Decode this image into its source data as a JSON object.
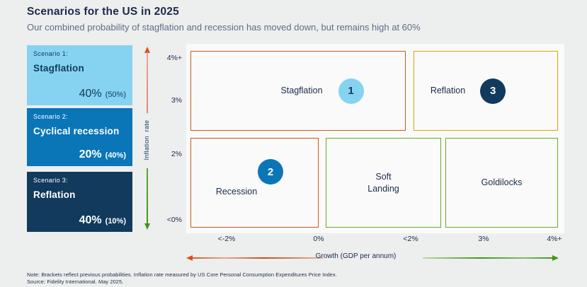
{
  "header": {
    "title": "Scenarios for the US in 2025",
    "subtitle": "Our combined probability of stagflation and recession has moved down, but remains high at 60%"
  },
  "scenarios": [
    {
      "label": "Scenario 1:",
      "name": "Stagflation",
      "probability": "40%",
      "previous": "(50%)"
    },
    {
      "label": "Scenario 2:",
      "name": "Cyclical recession",
      "probability": "20%",
      "previous": "(40%)"
    },
    {
      "label": "Scenario 3:",
      "name": "Reflation",
      "probability": "40%",
      "previous": "(10%)"
    }
  ],
  "chart": {
    "y_axis": {
      "label": "Inflation rate",
      "ticks": [
        "4%+",
        "3%",
        "2%",
        "<0%"
      ]
    },
    "x_axis": {
      "label": "Growth (GDP per annum)",
      "ticks": [
        "<-2%",
        "0%",
        "<2%",
        "3%",
        "4%+"
      ]
    },
    "zones": [
      {
        "label": "Stagflation",
        "number": "1"
      },
      {
        "label": "Reflation",
        "number": "3"
      },
      {
        "label": "Recession",
        "number": "2"
      },
      {
        "label": "Soft Landing",
        "number": ""
      },
      {
        "label": "Goldilocks",
        "number": ""
      }
    ]
  },
  "footer": {
    "note": "Note: Brackets reflect previous probabilities. Inflation rate measured by US Core Personal Consumption Expenditures Price Index.",
    "source": "Source: Fidelity International. May 2025."
  },
  "colors": {
    "background": "#EDEEEE",
    "panel": "#FAFAFA",
    "text_navy": "#1B2B4A",
    "subtitle_gray": "#5D6E88",
    "scenario1_light_blue": "#85D3F1",
    "scenario2_mid_blue": "#0A76B8",
    "scenario3_dark_navy": "#113A5C",
    "stagflation_recession_border_orange": "#C45A1B",
    "reflation_border_gold": "#D9A507",
    "softlanding_goldilocks_border_green": "#69AB25",
    "axis_negative_red": "#DF4E1D",
    "axis_negative_salmon": "#E5A28E",
    "axis_positive_green": "#3F9914"
  },
  "chart_data": {
    "type": "table",
    "title": "Scenarios for the US in 2025",
    "subtitle": "Our combined probability of stagflation and recession has moved down, but remains high at 60%",
    "xlabel": "Growth (GDP per annum)",
    "ylabel": "Inflation rate",
    "x_ticks": [
      "<-2%",
      "0%",
      "<2%",
      "3%",
      "4%+"
    ],
    "y_ticks": [
      "4%+",
      "3%",
      "2%",
      "<0%"
    ],
    "combined_stagflation_recession_probability_pct": 60,
    "zones": [
      {
        "label": "Stagflation",
        "scenario": 1,
        "probability_pct": 40,
        "previous_probability_pct": 50,
        "growth": "negative to ~2%",
        "inflation": "high (~2.5% to 4%+)"
      },
      {
        "label": "Reflation",
        "scenario": 3,
        "probability_pct": 40,
        "previous_probability_pct": 10,
        "growth": "high (~2% to 4%+)",
        "inflation": "high (~2.5% to 4%+)"
      },
      {
        "label": "Recession",
        "scenario": 2,
        "probability_pct": 20,
        "previous_probability_pct": 40,
        "growth": "negative (<0%)",
        "inflation": "low (<~2.5%)"
      },
      {
        "label": "Soft Landing",
        "scenario": null,
        "probability_pct": null,
        "previous_probability_pct": null,
        "growth": "0% to ~2.5%",
        "inflation": "low (<~2.5%)"
      },
      {
        "label": "Goldilocks",
        "scenario": null,
        "probability_pct": null,
        "previous_probability_pct": null,
        "growth": "high (~2.5% to 4%+)",
        "inflation": "low (<~2.5%)"
      }
    ],
    "legend_position": "left",
    "grid": false
  }
}
